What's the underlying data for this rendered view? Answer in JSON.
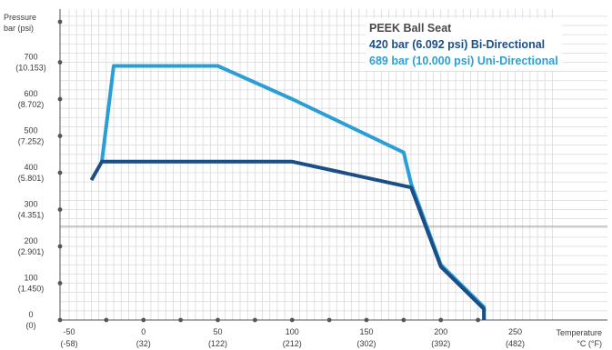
{
  "chart_data": {
    "type": "line",
    "title": "PEEK Ball Seat",
    "ylabel": [
      "Pressure",
      "bar (psi)"
    ],
    "xlabel": [
      "Temperature",
      "°C (°F)"
    ],
    "xlim": [
      -50,
      275
    ],
    "ylim": [
      0,
      750
    ],
    "grid": true,
    "legend_position": "top-right",
    "x_ticks": [
      {
        "value": -50,
        "c": "-50",
        "f": "(-58)"
      },
      {
        "value": 0,
        "c": "0",
        "f": "(32)"
      },
      {
        "value": 50,
        "c": "50",
        "f": "(122)"
      },
      {
        "value": 100,
        "c": "100",
        "f": "(212)"
      },
      {
        "value": 150,
        "c": "150",
        "f": "(302)"
      },
      {
        "value": 200,
        "c": "200",
        "f": "(392)"
      },
      {
        "value": 250,
        "c": "250",
        "f": "(482)"
      }
    ],
    "y_ticks": [
      {
        "value": 0,
        "bar": "0",
        "psi": "(0)"
      },
      {
        "value": 100,
        "bar": "100",
        "psi": "(1.450)"
      },
      {
        "value": 200,
        "bar": "200",
        "psi": "(2.901)"
      },
      {
        "value": 300,
        "bar": "300",
        "psi": "(4.351)"
      },
      {
        "value": 400,
        "bar": "400",
        "psi": "(5.801)"
      },
      {
        "value": 500,
        "bar": "500",
        "psi": "(7.252)"
      },
      {
        "value": 600,
        "bar": "600",
        "psi": "(8.702)"
      },
      {
        "value": 700,
        "bar": "700",
        "psi": "(10.153)"
      }
    ],
    "series": [
      {
        "name": "420 bar (6.092 psi) Bi-Directional",
        "color": "#1b4e86",
        "x": [
          -35,
          -28,
          100,
          180,
          200,
          229,
          229
        ],
        "y": [
          380,
          430,
          430,
          360,
          145,
          30,
          0
        ]
      },
      {
        "name": "689 bar (10.000 psi) Uni-Directional",
        "color": "#2a9fd6",
        "x": [
          -28,
          -20,
          50,
          100,
          175,
          180,
          200,
          229,
          229
        ],
        "y": [
          430,
          690,
          690,
          600,
          455,
          370,
          150,
          35,
          0
        ]
      }
    ]
  }
}
